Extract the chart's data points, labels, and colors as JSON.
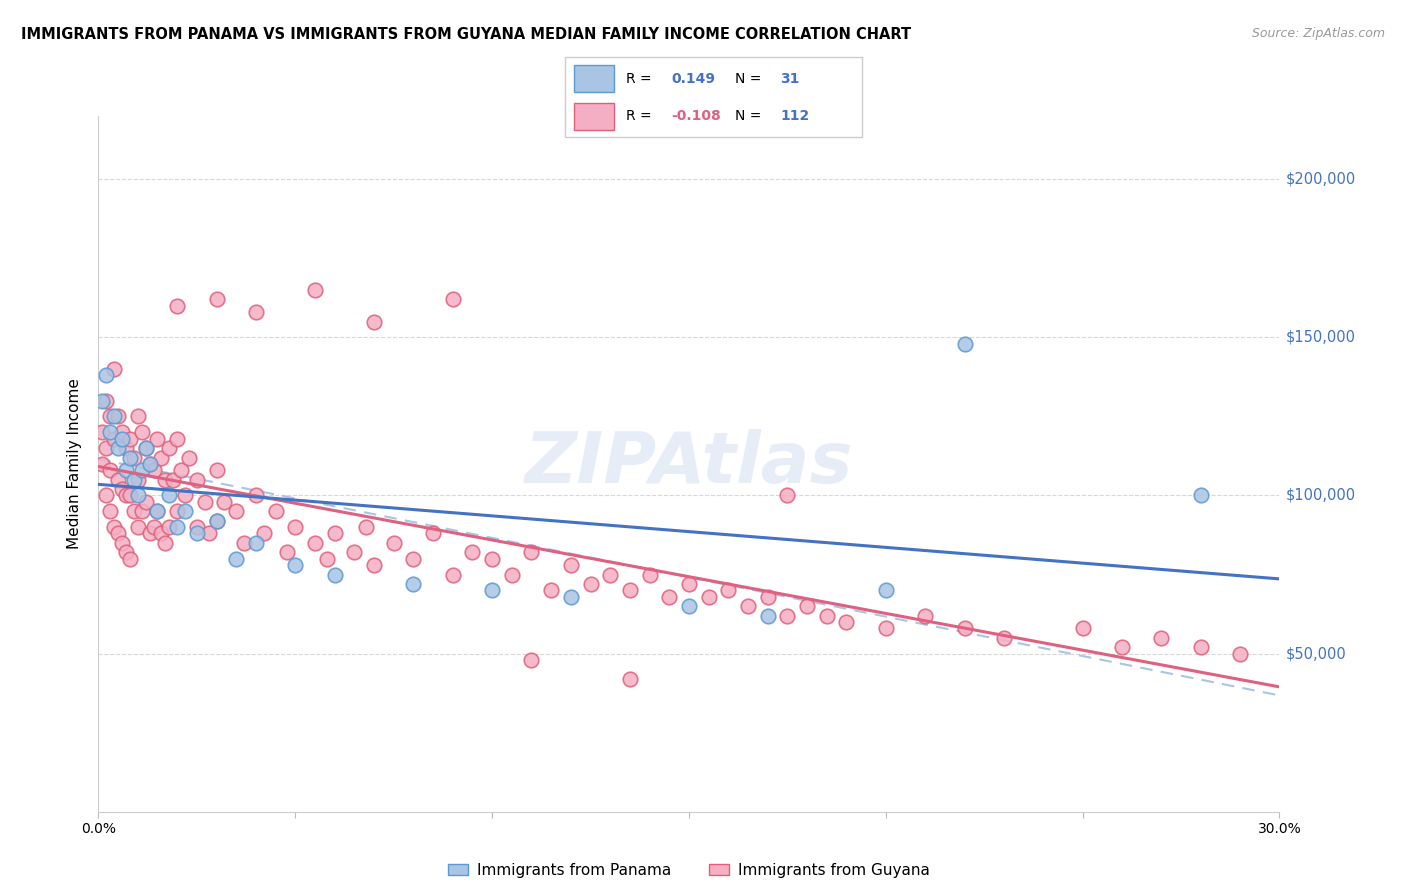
{
  "title": "IMMIGRANTS FROM PANAMA VS IMMIGRANTS FROM GUYANA MEDIAN FAMILY INCOME CORRELATION CHART",
  "source": "Source: ZipAtlas.com",
  "ylabel": "Median Family Income",
  "y_ticks": [
    50000,
    100000,
    150000,
    200000
  ],
  "y_tick_labels": [
    "$50,000",
    "$100,000",
    "$150,000",
    "$200,000"
  ],
  "xlim": [
    0.0,
    0.3
  ],
  "ylim": [
    0,
    220000
  ],
  "panama_color": "#aac4e3",
  "panama_edge_color": "#5b9bd5",
  "guyana_color": "#f4afc4",
  "guyana_edge_color": "#e0607a",
  "panama_R": 0.149,
  "panama_N": 31,
  "guyana_R": -0.108,
  "guyana_N": 112,
  "legend_label_panama": "Immigrants from Panama",
  "legend_label_guyana": "Immigrants from Guyana",
  "panama_x": [
    0.001,
    0.002,
    0.003,
    0.004,
    0.005,
    0.006,
    0.007,
    0.008,
    0.009,
    0.01,
    0.011,
    0.012,
    0.013,
    0.015,
    0.018,
    0.02,
    0.022,
    0.025,
    0.03,
    0.035,
    0.04,
    0.05,
    0.06,
    0.08,
    0.1,
    0.12,
    0.15,
    0.17,
    0.2,
    0.22,
    0.28
  ],
  "panama_y": [
    130000,
    138000,
    120000,
    125000,
    115000,
    118000,
    108000,
    112000,
    105000,
    100000,
    108000,
    115000,
    110000,
    95000,
    100000,
    90000,
    95000,
    88000,
    92000,
    80000,
    85000,
    78000,
    75000,
    72000,
    70000,
    68000,
    65000,
    62000,
    70000,
    148000,
    100000
  ],
  "guyana_x": [
    0.001,
    0.001,
    0.002,
    0.002,
    0.002,
    0.003,
    0.003,
    0.003,
    0.004,
    0.004,
    0.004,
    0.005,
    0.005,
    0.005,
    0.006,
    0.006,
    0.006,
    0.007,
    0.007,
    0.007,
    0.008,
    0.008,
    0.008,
    0.009,
    0.009,
    0.01,
    0.01,
    0.01,
    0.011,
    0.011,
    0.012,
    0.012,
    0.013,
    0.013,
    0.014,
    0.014,
    0.015,
    0.015,
    0.016,
    0.016,
    0.017,
    0.017,
    0.018,
    0.018,
    0.019,
    0.02,
    0.02,
    0.021,
    0.022,
    0.023,
    0.025,
    0.025,
    0.027,
    0.028,
    0.03,
    0.03,
    0.032,
    0.035,
    0.037,
    0.04,
    0.042,
    0.045,
    0.048,
    0.05,
    0.055,
    0.058,
    0.06,
    0.065,
    0.068,
    0.07,
    0.075,
    0.08,
    0.085,
    0.09,
    0.095,
    0.1,
    0.105,
    0.11,
    0.115,
    0.12,
    0.125,
    0.13,
    0.135,
    0.14,
    0.145,
    0.15,
    0.155,
    0.16,
    0.165,
    0.17,
    0.175,
    0.18,
    0.185,
    0.19,
    0.2,
    0.21,
    0.22,
    0.23,
    0.25,
    0.26,
    0.27,
    0.28,
    0.29,
    0.175,
    0.02,
    0.03,
    0.04,
    0.055,
    0.07,
    0.09,
    0.11,
    0.135
  ],
  "guyana_y": [
    120000,
    110000,
    130000,
    115000,
    100000,
    125000,
    108000,
    95000,
    140000,
    118000,
    90000,
    125000,
    105000,
    88000,
    120000,
    102000,
    85000,
    115000,
    100000,
    82000,
    118000,
    100000,
    80000,
    112000,
    95000,
    125000,
    105000,
    90000,
    120000,
    95000,
    115000,
    98000,
    110000,
    88000,
    108000,
    90000,
    118000,
    95000,
    112000,
    88000,
    105000,
    85000,
    115000,
    90000,
    105000,
    118000,
    95000,
    108000,
    100000,
    112000,
    105000,
    90000,
    98000,
    88000,
    108000,
    92000,
    98000,
    95000,
    85000,
    100000,
    88000,
    95000,
    82000,
    90000,
    85000,
    80000,
    88000,
    82000,
    90000,
    78000,
    85000,
    80000,
    88000,
    75000,
    82000,
    80000,
    75000,
    82000,
    70000,
    78000,
    72000,
    75000,
    70000,
    75000,
    68000,
    72000,
    68000,
    70000,
    65000,
    68000,
    62000,
    65000,
    62000,
    60000,
    58000,
    62000,
    58000,
    55000,
    58000,
    52000,
    55000,
    52000,
    50000,
    100000,
    160000,
    162000,
    158000,
    165000,
    155000,
    162000,
    48000,
    42000
  ]
}
